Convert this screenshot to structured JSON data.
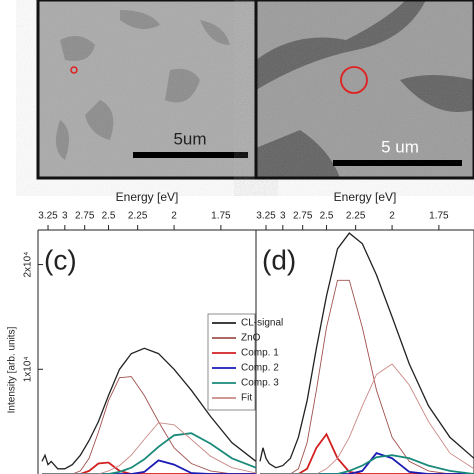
{
  "images": [
    {
      "scale_label": "5um"
    },
    {
      "scale_label": "5 um"
    }
  ],
  "chart_data": [
    {
      "type": "line",
      "panel_label": "(c)",
      "xlabel": "Energy [eV]",
      "ylabel": "Intensity [arb. units]",
      "x_scale": "reciprocal",
      "xlim": [
        3.42,
        1.6
      ],
      "ylim": [
        0,
        23300
      ],
      "xticks": [
        3.25,
        3,
        2.75,
        2.5,
        2.25,
        2,
        1.75
      ],
      "yticks": [
        {
          "value": 10000,
          "label": "1x10⁴"
        },
        {
          "value": 20000,
          "label": "2x10⁴"
        }
      ],
      "legend": true,
      "x": [
        3.35,
        3.3,
        3.25,
        3.2,
        3.1,
        3.0,
        2.9,
        2.8,
        2.7,
        2.6,
        2.5,
        2.4,
        2.3,
        2.2,
        2.1,
        2.0,
        1.9,
        1.8,
        1.7,
        1.6
      ],
      "series": [
        {
          "name": "CL-signal",
          "color": "#222222",
          "values": [
            1200,
            1800,
            900,
            1200,
            500,
            500,
            900,
            1800,
            3200,
            5000,
            7500,
            10000,
            11500,
            12000,
            11500,
            10000,
            8000,
            5500,
            3000,
            1200
          ]
        },
        {
          "name": "ZnO",
          "color": "#a0524f",
          "values": [
            0,
            0,
            0,
            0,
            0,
            0,
            0,
            300,
            1500,
            4000,
            7000,
            9200,
            9300,
            7500,
            5000,
            2500,
            1000,
            300,
            0,
            0
          ]
        },
        {
          "name": "Comp. 1",
          "color": "#d21f1f",
          "values": [
            0,
            0,
            0,
            0,
            0,
            0,
            0,
            0,
            300,
            1000,
            1100,
            300,
            0,
            0,
            0,
            0,
            0,
            0,
            0,
            0
          ]
        },
        {
          "name": "Comp. 2",
          "color": "#1a1ab4",
          "values": [
            0,
            0,
            0,
            0,
            0,
            0,
            0,
            0,
            0,
            0,
            0,
            0,
            0,
            200,
            1300,
            900,
            100,
            0,
            0,
            0
          ]
        },
        {
          "name": "Comp. 3",
          "color": "#1a8a7a",
          "values": [
            0,
            0,
            0,
            0,
            0,
            0,
            0,
            0,
            0,
            0,
            0,
            200,
            600,
            1400,
            2600,
            3700,
            3900,
            2900,
            1500,
            600
          ]
        },
        {
          "name": "Fit",
          "color": "#c98a86",
          "values": [
            0,
            0,
            0,
            0,
            0,
            0,
            0,
            0,
            0,
            0,
            300,
            800,
            1800,
            3300,
            4900,
            4700,
            3300,
            1700,
            600,
            100
          ]
        }
      ]
    },
    {
      "type": "line",
      "panel_label": "(d)",
      "xlabel": "Energy [eV]",
      "x_scale": "reciprocal",
      "xlim": [
        3.42,
        1.6
      ],
      "ylim": [
        0,
        23300
      ],
      "xticks": [
        3.25,
        3,
        2.75,
        2.5,
        2.25,
        2,
        1.75
      ],
      "legend": false,
      "x": [
        3.35,
        3.3,
        3.25,
        3.2,
        3.1,
        3.0,
        2.9,
        2.8,
        2.7,
        2.6,
        2.5,
        2.4,
        2.3,
        2.2,
        2.1,
        2.0,
        1.9,
        1.8,
        1.7,
        1.6
      ],
      "series": [
        {
          "color": "#222222",
          "values": [
            1200,
            2500,
            1500,
            1000,
            600,
            800,
            1500,
            3500,
            7000,
            12000,
            17000,
            21500,
            23000,
            22000,
            19000,
            15000,
            10500,
            6500,
            3500,
            1500
          ]
        },
        {
          "color": "#a0524f",
          "values": [
            0,
            0,
            0,
            0,
            0,
            0,
            0,
            500,
            3000,
            8000,
            14000,
            18500,
            18500,
            14000,
            8000,
            3500,
            1200,
            300,
            0,
            0
          ]
        },
        {
          "color": "#d21f1f",
          "values": [
            0,
            0,
            0,
            0,
            0,
            0,
            0,
            0,
            500,
            2500,
            3800,
            1500,
            200,
            0,
            0,
            0,
            0,
            0,
            0,
            0
          ]
        },
        {
          "color": "#1a1ab4",
          "values": [
            0,
            0,
            0,
            0,
            0,
            0,
            0,
            0,
            0,
            0,
            0,
            0,
            0,
            300,
            2000,
            1500,
            200,
            0,
            0,
            0
          ]
        },
        {
          "color": "#1a8a7a",
          "values": [
            0,
            0,
            0,
            0,
            0,
            0,
            0,
            0,
            0,
            0,
            0,
            0,
            300,
            800,
            1600,
            1800,
            1500,
            800,
            300,
            0
          ]
        },
        {
          "color": "#c98a86",
          "values": [
            0,
            0,
            0,
            0,
            0,
            0,
            0,
            0,
            0,
            0,
            500,
            1500,
            3500,
            6500,
            9500,
            10500,
            8500,
            5000,
            2000,
            500
          ]
        }
      ]
    }
  ]
}
